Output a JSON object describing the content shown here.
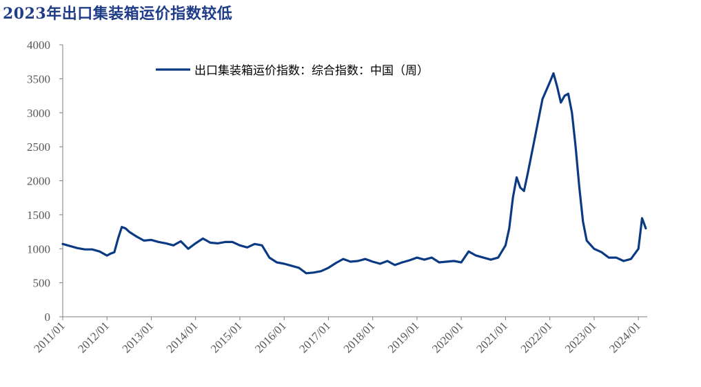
{
  "title": "2023年出口集装箱运价指数较低",
  "chart_data": {
    "type": "line",
    "title": "2023年出口集装箱运价指数较低",
    "xlabel": "",
    "ylabel": "",
    "ylim": [
      0,
      4000
    ],
    "yticks": [
      0,
      500,
      1000,
      1500,
      2000,
      2500,
      3000,
      3500,
      4000
    ],
    "xticks": [
      "2011/01",
      "2012/01",
      "2013/01",
      "2014/01",
      "2015/01",
      "2016/01",
      "2017/01",
      "2018/01",
      "2019/01",
      "2020/01",
      "2021/01",
      "2022/01",
      "2023/01",
      "2024/01"
    ],
    "grid": false,
    "legend_position": "top-center",
    "series": [
      {
        "name": "出口集装箱运价指数：综合指数：中国（周）",
        "color": "#0b3a84",
        "x": [
          "2011/01",
          "2011/03",
          "2011/05",
          "2011/07",
          "2011/09",
          "2011/11",
          "2012/01",
          "2012/02",
          "2012/03",
          "2012/04",
          "2012/05",
          "2012/06",
          "2012/07",
          "2012/09",
          "2012/11",
          "2013/01",
          "2013/03",
          "2013/05",
          "2013/07",
          "2013/09",
          "2013/11",
          "2014/01",
          "2014/03",
          "2014/05",
          "2014/07",
          "2014/09",
          "2014/11",
          "2015/01",
          "2015/03",
          "2015/05",
          "2015/07",
          "2015/09",
          "2015/11",
          "2016/01",
          "2016/03",
          "2016/05",
          "2016/07",
          "2016/09",
          "2016/11",
          "2017/01",
          "2017/03",
          "2017/05",
          "2017/07",
          "2017/09",
          "2017/11",
          "2018/01",
          "2018/03",
          "2018/05",
          "2018/07",
          "2018/09",
          "2018/11",
          "2019/01",
          "2019/03",
          "2019/05",
          "2019/07",
          "2019/09",
          "2019/11",
          "2020/01",
          "2020/03",
          "2020/05",
          "2020/07",
          "2020/09",
          "2020/11",
          "2021/01",
          "2021/02",
          "2021/03",
          "2021/04",
          "2021/05",
          "2021/06",
          "2021/07",
          "2021/09",
          "2021/11",
          "2022/01",
          "2022/02",
          "2022/03",
          "2022/04",
          "2022/05",
          "2022/06",
          "2022/07",
          "2022/08",
          "2022/09",
          "2022/10",
          "2022/11",
          "2023/01",
          "2023/03",
          "2023/05",
          "2023/07",
          "2023/09",
          "2023/11",
          "2024/01",
          "2024/02",
          "2024/03"
        ],
        "values": [
          1070,
          1040,
          1010,
          990,
          990,
          960,
          900,
          930,
          950,
          1150,
          1320,
          1300,
          1250,
          1180,
          1120,
          1130,
          1100,
          1080,
          1050,
          1110,
          1000,
          1080,
          1150,
          1090,
          1080,
          1100,
          1100,
          1050,
          1020,
          1070,
          1050,
          870,
          800,
          780,
          750,
          720,
          640,
          650,
          670,
          720,
          790,
          850,
          810,
          820,
          850,
          810,
          780,
          820,
          760,
          800,
          830,
          870,
          840,
          870,
          800,
          810,
          820,
          800,
          960,
          900,
          870,
          840,
          870,
          1050,
          1300,
          1750,
          2050,
          1900,
          1850,
          2100,
          2650,
          3200,
          3450,
          3580,
          3380,
          3150,
          3250,
          3280,
          3000,
          2500,
          1900,
          1400,
          1120,
          1000,
          950,
          870,
          870,
          820,
          850,
          1000,
          1450,
          1300
        ]
      }
    ]
  }
}
